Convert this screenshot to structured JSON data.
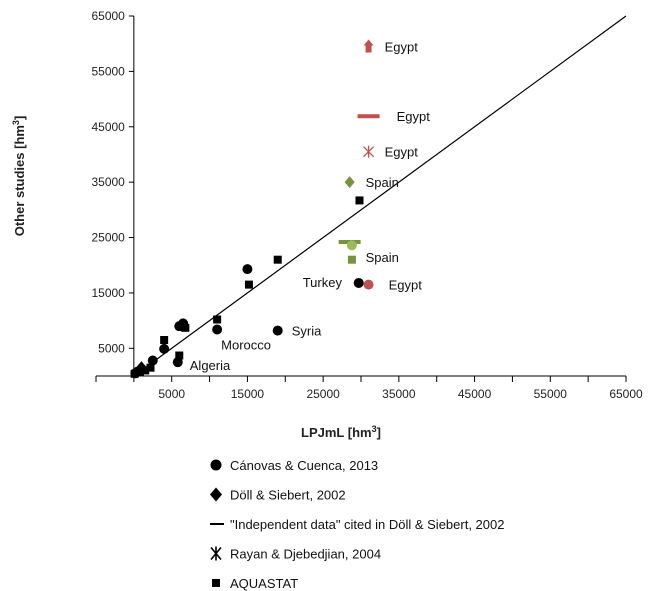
{
  "chart_data": {
    "type": "scatter",
    "title": "",
    "xlabel": "LPJmL [hm",
    "ylabel": "Other studies [hm",
    "unit_superscript": "3",
    "xlim": [
      -5000,
      65000
    ],
    "ylim": [
      0,
      65000
    ],
    "x_ticks": [
      5000,
      15000,
      25000,
      35000,
      45000,
      55000,
      65000
    ],
    "y_ticks": [
      5000,
      15000,
      25000,
      35000,
      45000,
      55000,
      65000
    ],
    "x_tick_labels": [
      "5000",
      "15000",
      "25000",
      "35000",
      "45000",
      "55000",
      "65000"
    ],
    "y_tick_labels": [
      "5000",
      "15000",
      "25000",
      "35000",
      "45000",
      "55000",
      "65000"
    ],
    "grid": false,
    "legend_position": "bottom",
    "reference_line": {
      "x": [
        0,
        65000
      ],
      "y": [
        0,
        65000
      ]
    },
    "series": [
      {
        "name": "Cánovas & Cuenca, 2013",
        "marker": "circle",
        "color": "#000000",
        "points": [
          {
            "x": 200,
            "y": 500
          },
          {
            "x": 500,
            "y": 800
          },
          {
            "x": 1000,
            "y": 1300
          },
          {
            "x": 2500,
            "y": 2800
          },
          {
            "x": 4000,
            "y": 4900
          },
          {
            "x": 5800,
            "y": 2500
          },
          {
            "x": 6000,
            "y": 9000
          },
          {
            "x": 6500,
            "y": 9500
          },
          {
            "x": 11000,
            "y": 8400
          },
          {
            "x": 15000,
            "y": 19300
          },
          {
            "x": 19000,
            "y": 8200
          },
          {
            "x": 29700,
            "y": 16800
          }
        ]
      },
      {
        "name": "Döll & Siebert, 2002",
        "marker": "diamond",
        "color": "#000000",
        "points": [
          {
            "x": 1000,
            "y": 1600
          }
        ]
      },
      {
        "name": "\"Independent data\" cited in Döll & Siebert, 2002",
        "marker": "dash",
        "color": "#000000",
        "points": []
      },
      {
        "name": "Rayan & Djebedjian, 2004",
        "marker": "asterisk",
        "color": "#000000",
        "points": []
      },
      {
        "name": "AQUASTAT",
        "marker": "square",
        "color": "#000000",
        "points": [
          {
            "x": 100,
            "y": 400
          },
          {
            "x": 800,
            "y": 700
          },
          {
            "x": 1500,
            "y": 1000
          },
          {
            "x": 2200,
            "y": 1500
          },
          {
            "x": 4000,
            "y": 6500
          },
          {
            "x": 6000,
            "y": 3700
          },
          {
            "x": 6800,
            "y": 8700
          },
          {
            "x": 11000,
            "y": 10200
          },
          {
            "x": 15200,
            "y": 16500
          },
          {
            "x": 19000,
            "y": 21000
          },
          {
            "x": 29800,
            "y": 31700
          }
        ]
      }
    ],
    "highlighted_points": [
      {
        "label": "Egypt",
        "marker": "arrow-up",
        "color": "#c0504d",
        "x": 31000,
        "y": 59500
      },
      {
        "label": "Egypt",
        "marker": "dash",
        "color": "#c0504d",
        "x": 31000,
        "y": 46900
      },
      {
        "label": "Egypt",
        "marker": "asterisk",
        "color": "#c0504d",
        "x": 31000,
        "y": 40500
      },
      {
        "label": "Egypt",
        "marker": "circle",
        "color": "#c0504d",
        "x": 31000,
        "y": 16500
      },
      {
        "label": "Spain",
        "marker": "diamond",
        "color": "#77933c",
        "x": 28500,
        "y": 35000
      },
      {
        "label": "Spain",
        "marker": "dash",
        "color": "#77933c",
        "x": 28500,
        "y": 24200
      },
      {
        "label": "",
        "marker": "circle",
        "color": "#9bbb59",
        "x": 28800,
        "y": 23600
      },
      {
        "label": "",
        "marker": "square",
        "color": "#77933c",
        "x": 28800,
        "y": 21000
      }
    ],
    "annotations": [
      {
        "text": "Egypt",
        "x": 31000,
        "y": 59500,
        "dx": 16,
        "dy": 5
      },
      {
        "text": "Egypt",
        "x": 31000,
        "y": 46900,
        "dx": 28,
        "dy": 5
      },
      {
        "text": "Egypt",
        "x": 31000,
        "y": 40500,
        "dx": 16,
        "dy": 5
      },
      {
        "text": "Spain",
        "x": 28500,
        "y": 35000,
        "dx": 16,
        "dy": 5
      },
      {
        "text": "Spain",
        "x": 28500,
        "y": 24200,
        "dx": 16,
        "dy": 20
      },
      {
        "text": "Turkey",
        "x": 29700,
        "y": 16800,
        "dx": -56,
        "dy": 4
      },
      {
        "text": "Egypt",
        "x": 31000,
        "y": 16500,
        "dx": 20,
        "dy": 5
      },
      {
        "text": "Syria",
        "x": 19000,
        "y": 8200,
        "dx": 14,
        "dy": 5
      },
      {
        "text": "Morocco",
        "x": 11000,
        "y": 8400,
        "dx": 4,
        "dy": 20
      },
      {
        "text": "Algeria",
        "x": 5800,
        "y": 2500,
        "dx": 12,
        "dy": 8
      }
    ]
  }
}
